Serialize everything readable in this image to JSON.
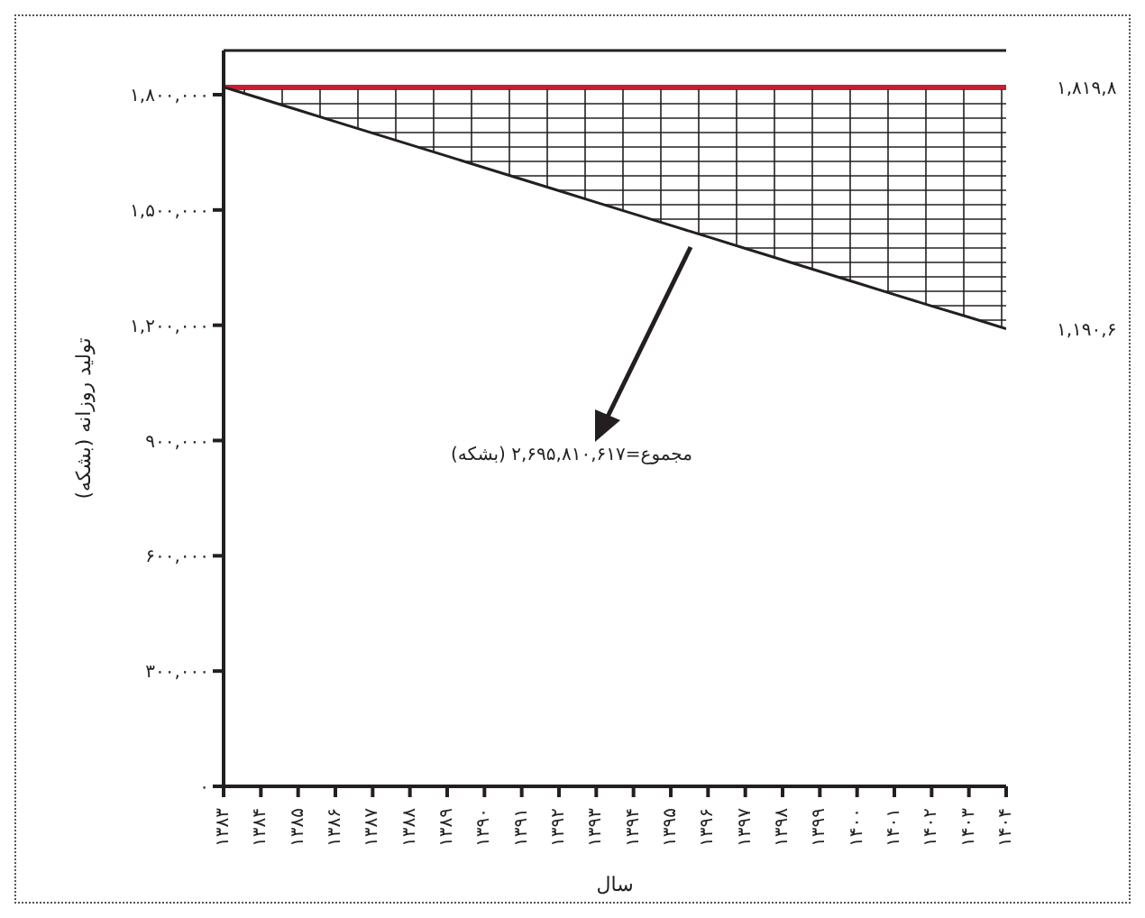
{
  "chart_data": {
    "type": "line",
    "xlabel": "سال",
    "ylabel": "تولید روزانه (بشکه)",
    "x": [
      1383,
      1384,
      1385,
      1386,
      1387,
      1388,
      1389,
      1390,
      1391,
      1392,
      1393,
      1394,
      1395,
      1396,
      1397,
      1398,
      1399,
      1400,
      1401,
      1402,
      1403,
      1404
    ],
    "series": [
      {
        "color": "#231f20",
        "values": [
          1819800,
          1790000,
          1760000,
          1730000,
          1700000,
          1670000,
          1640000,
          1610000,
          1580000,
          1550000,
          1520000,
          1490000,
          1460000,
          1430000,
          1400000,
          1370000,
          1340000,
          1310000,
          1280000,
          1250000,
          1221000,
          1190600
        ],
        "lower": [
          1819800,
          1790000,
          1760000,
          1730000,
          1700000,
          1670000,
          1640000,
          1610000,
          1580000,
          1550000,
          1520000,
          1490000,
          1460000,
          1430000,
          1400000,
          1370000,
          1340000,
          1310000,
          1280000,
          1250000,
          1221000,
          1190600
        ],
        "upper": [
          1819800,
          1819800,
          1819800,
          1819800,
          1819800,
          1819800,
          1819800,
          1819800,
          1819800,
          1819800,
          1819800,
          1819800,
          1819800,
          1819800,
          1819800,
          1819800,
          1819800,
          1819800,
          1819800,
          1819800,
          1819800,
          1819800
        ]
      }
    ],
    "ref_lines": [
      {
        "axis": "y",
        "value": 1819800,
        "color": "#c42032"
      }
    ],
    "xlim": [
      1383,
      1404
    ],
    "xticks": [
      {
        "value": 1383,
        "label": "۱۳۸۳"
      },
      {
        "value": 1384,
        "label": "۱۳۸۴"
      },
      {
        "value": 1385,
        "label": "۱۳۸۵"
      },
      {
        "value": 1386,
        "label": "۱۳۸۶"
      },
      {
        "value": 1387,
        "label": "۱۳۸۷"
      },
      {
        "value": 1388,
        "label": "۱۳۸۸"
      },
      {
        "value": 1389,
        "label": "۱۳۸۹"
      },
      {
        "value": 1390,
        "label": "۱۳۹۰"
      },
      {
        "value": 1391,
        "label": "۱۳۹۱"
      },
      {
        "value": 1392,
        "label": "۱۳۹۲"
      },
      {
        "value": 1393,
        "label": "۱۳۹۳"
      },
      {
        "value": 1394,
        "label": "۱۳۹۴"
      },
      {
        "value": 1395,
        "label": "۱۳۹۵"
      },
      {
        "value": 1396,
        "label": "۱۳۹۶"
      },
      {
        "value": 1397,
        "label": "۱۳۹۷"
      },
      {
        "value": 1398,
        "label": "۱۳۹۸"
      },
      {
        "value": 1399,
        "label": "۱۳۹۹"
      },
      {
        "value": 1400,
        "label": "۱۴۰۰"
      },
      {
        "value": 1401,
        "label": "۱۴۰۱"
      },
      {
        "value": 1402,
        "label": "۱۴۰۲"
      },
      {
        "value": 1403,
        "label": "۱۴۰۳"
      },
      {
        "value": 1404,
        "label": "۱۴۰۴"
      }
    ],
    "ylim": [
      0,
      1915000
    ],
    "yticks": [
      {
        "value": 0,
        "label": "۰"
      },
      {
        "value": 300000,
        "label": "۳۰۰,۰۰۰"
      },
      {
        "value": 600000,
        "label": "۶۰۰,۰۰۰"
      },
      {
        "value": 900000,
        "label": "۹۰۰,۰۰۰"
      },
      {
        "value": 1200000,
        "label": "۱,۲۰۰,۰۰۰"
      },
      {
        "value": 1500000,
        "label": "۱,۵۰۰,۰۰۰"
      },
      {
        "value": 1800000,
        "label": "۱,۸۰۰,۰۰۰"
      }
    ],
    "annotations": [
      {
        "text": "۱,۸۱۹,۸",
        "x": 1404,
        "y": 1819800
      },
      {
        "text": "۱,۱۹۰,۶",
        "x": 1404,
        "y": 1190600
      },
      "مجموع=۲,۶۹۵,۸۱۰,۶۱۷ (بشکه)"
    ],
    "grid": false,
    "legend": false,
    "marker": "none",
    "line_style": "solid"
  }
}
